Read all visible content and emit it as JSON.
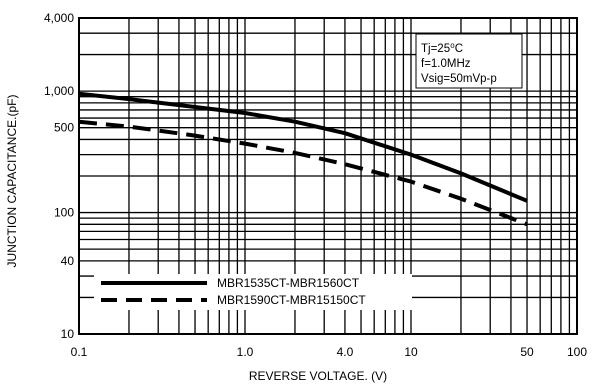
{
  "chart_data": {
    "type": "line",
    "title": "",
    "xlabel": "REVERSE VOLTAGE. (V)",
    "ylabel": "JUNCTION CAPACITANCE.(pF)",
    "x_scale": "log",
    "y_scale": "log",
    "xlim": [
      0.1,
      100
    ],
    "ylim": [
      10,
      4000
    ],
    "x_ticks": [
      0.1,
      1.0,
      4.0,
      10,
      50,
      100
    ],
    "x_tick_labels": [
      "0.1",
      "1.0",
      "4.0",
      "10",
      "50",
      "100"
    ],
    "y_ticks": [
      10,
      40,
      100,
      500,
      1000,
      4000
    ],
    "y_tick_labels": [
      "10",
      "40",
      "100",
      "500",
      "1,000",
      "4,000"
    ],
    "grid": true,
    "legend_position": "bottom-left",
    "annotations": [
      "Tj=25⁰C",
      "f=1.0MHz",
      "Vsig=50mVp-p"
    ],
    "series": [
      {
        "name": "MBR1535CT-MBR1560CT",
        "style": "solid",
        "color": "#000000",
        "x": [
          0.1,
          0.2,
          0.5,
          1.0,
          2.0,
          4.0,
          10,
          20,
          50
        ],
        "y": [
          950,
          860,
          740,
          660,
          560,
          450,
          300,
          210,
          125
        ]
      },
      {
        "name": "MBR1590CT-MBR15150CT",
        "style": "dashed",
        "color": "#000000",
        "x": [
          0.1,
          0.2,
          0.5,
          1.0,
          2.0,
          4.0,
          10,
          20,
          50
        ],
        "y": [
          560,
          510,
          430,
          370,
          310,
          250,
          180,
          130,
          80
        ]
      }
    ]
  }
}
